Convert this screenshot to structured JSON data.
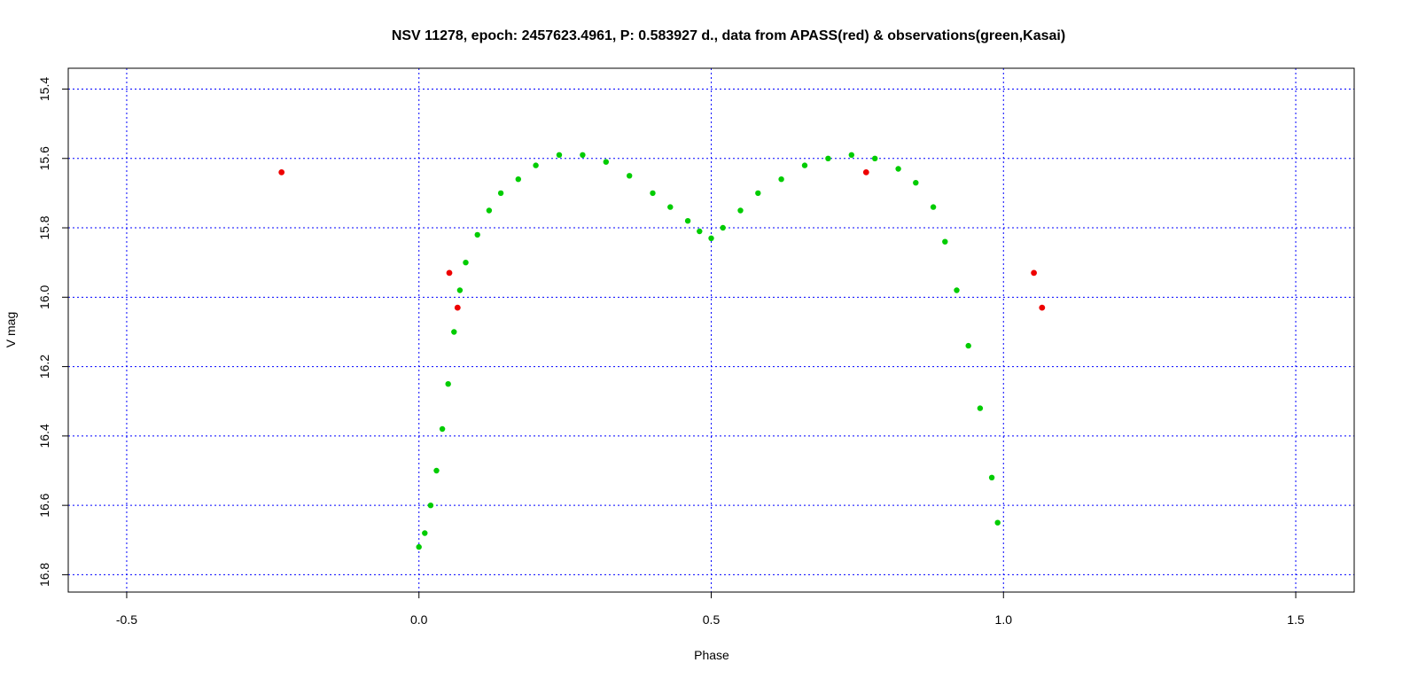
{
  "chart_data": {
    "type": "scatter",
    "title": "NSV 11278, epoch: 2457623.4961, P: 0.583927 d., data from APASS(red) & observations(green,Kasai)",
    "xlabel": "Phase",
    "ylabel": "V mag",
    "xlim": [
      -0.6,
      1.6
    ],
    "ylim": [
      16.85,
      15.34
    ],
    "y_inverted": true,
    "x_ticks": [
      -0.5,
      0.0,
      0.5,
      1.0,
      1.5
    ],
    "x_tick_labels": [
      "-0.5",
      "0.0",
      "0.5",
      "1.0",
      "1.5"
    ],
    "y_ticks": [
      15.4,
      15.6,
      15.8,
      16.0,
      16.2,
      16.4,
      16.6,
      16.8
    ],
    "y_tick_labels": [
      "15.4",
      "15.6",
      "15.8",
      "16.0",
      "16.2",
      "16.4",
      "16.6",
      "16.8"
    ],
    "grid": true,
    "legend": "none",
    "colors": {
      "observations": "#00cc00",
      "apass": "#ee0000",
      "grid": "#0000ff"
    },
    "series": [
      {
        "color": "#00cc00",
        "points": [
          [
            0.0,
            16.72
          ],
          [
            0.01,
            16.68
          ],
          [
            0.02,
            16.6
          ],
          [
            0.03,
            16.5
          ],
          [
            0.04,
            16.38
          ],
          [
            0.05,
            16.25
          ],
          [
            0.06,
            16.1
          ],
          [
            0.07,
            15.98
          ],
          [
            0.08,
            15.9
          ],
          [
            0.1,
            15.82
          ],
          [
            0.12,
            15.75
          ],
          [
            0.14,
            15.7
          ],
          [
            0.17,
            15.66
          ],
          [
            0.2,
            15.62
          ],
          [
            0.24,
            15.59
          ],
          [
            0.28,
            15.59
          ],
          [
            0.32,
            15.61
          ],
          [
            0.36,
            15.65
          ],
          [
            0.4,
            15.7
          ],
          [
            0.43,
            15.74
          ],
          [
            0.46,
            15.78
          ],
          [
            0.48,
            15.81
          ],
          [
            0.5,
            15.83
          ],
          [
            0.52,
            15.8
          ],
          [
            0.55,
            15.75
          ],
          [
            0.58,
            15.7
          ],
          [
            0.62,
            15.66
          ],
          [
            0.66,
            15.62
          ],
          [
            0.7,
            15.6
          ],
          [
            0.74,
            15.59
          ],
          [
            0.78,
            15.6
          ],
          [
            0.82,
            15.63
          ],
          [
            0.85,
            15.67
          ],
          [
            0.88,
            15.74
          ],
          [
            0.9,
            15.84
          ],
          [
            0.92,
            15.98
          ],
          [
            0.94,
            16.14
          ],
          [
            0.96,
            16.32
          ],
          [
            0.98,
            16.52
          ],
          [
            0.99,
            16.65
          ]
        ]
      },
      {
        "color": "#ee0000",
        "points": [
          [
            -0.235,
            15.64
          ],
          [
            0.052,
            15.93
          ],
          [
            0.066,
            16.03
          ],
          [
            0.765,
            15.64
          ],
          [
            1.052,
            15.93
          ],
          [
            1.066,
            16.03
          ]
        ]
      }
    ]
  }
}
